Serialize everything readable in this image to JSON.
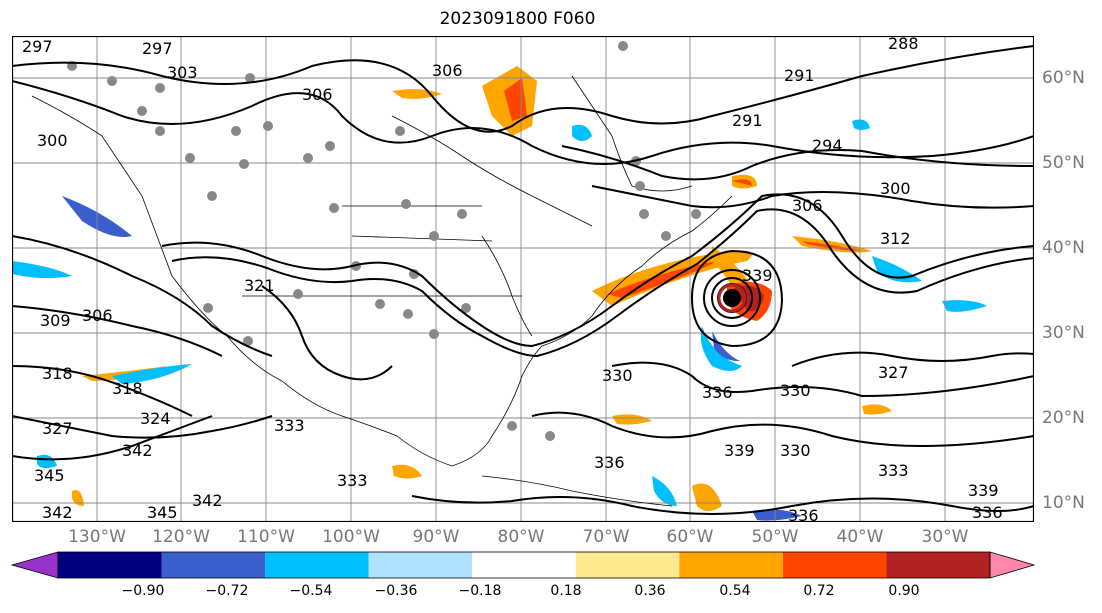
{
  "title": "2023091800 F060",
  "lat_ticks": [
    "60°N",
    "50°N",
    "40°N",
    "30°N",
    "20°N",
    "10°N"
  ],
  "lon_ticks": [
    "130°W",
    "120°W",
    "110°W",
    "100°W",
    "90°W",
    "80°W",
    "70°W",
    "60°W",
    "50°W",
    "40°W",
    "30°W"
  ],
  "contour_labels": [
    "297",
    "297",
    "303",
    "306",
    "300",
    "288",
    "291",
    "291",
    "294",
    "300",
    "306",
    "306",
    "312",
    "309",
    "306",
    "318",
    "318",
    "324",
    "327",
    "342",
    "345",
    "342",
    "342",
    "345",
    "330",
    "333",
    "336",
    "339",
    "336",
    "330",
    "327",
    "336",
    "333",
    "339",
    "336",
    "339",
    "321",
    "333",
    "330"
  ],
  "colorbar": {
    "ticks": [
      "−0.90",
      "−0.72",
      "−0.54",
      "−0.36",
      "−0.18",
      "0.18",
      "0.36",
      "0.54",
      "0.72",
      "0.90"
    ],
    "colors": [
      "#9932cc",
      "#000080",
      "#3a5fcd",
      "#00bfff",
      "#b0e2ff",
      "#ffffff",
      "#ffe88f",
      "#ffa500",
      "#ff4500",
      "#b22222",
      "#ff88aa"
    ],
    "extend": "both"
  }
}
